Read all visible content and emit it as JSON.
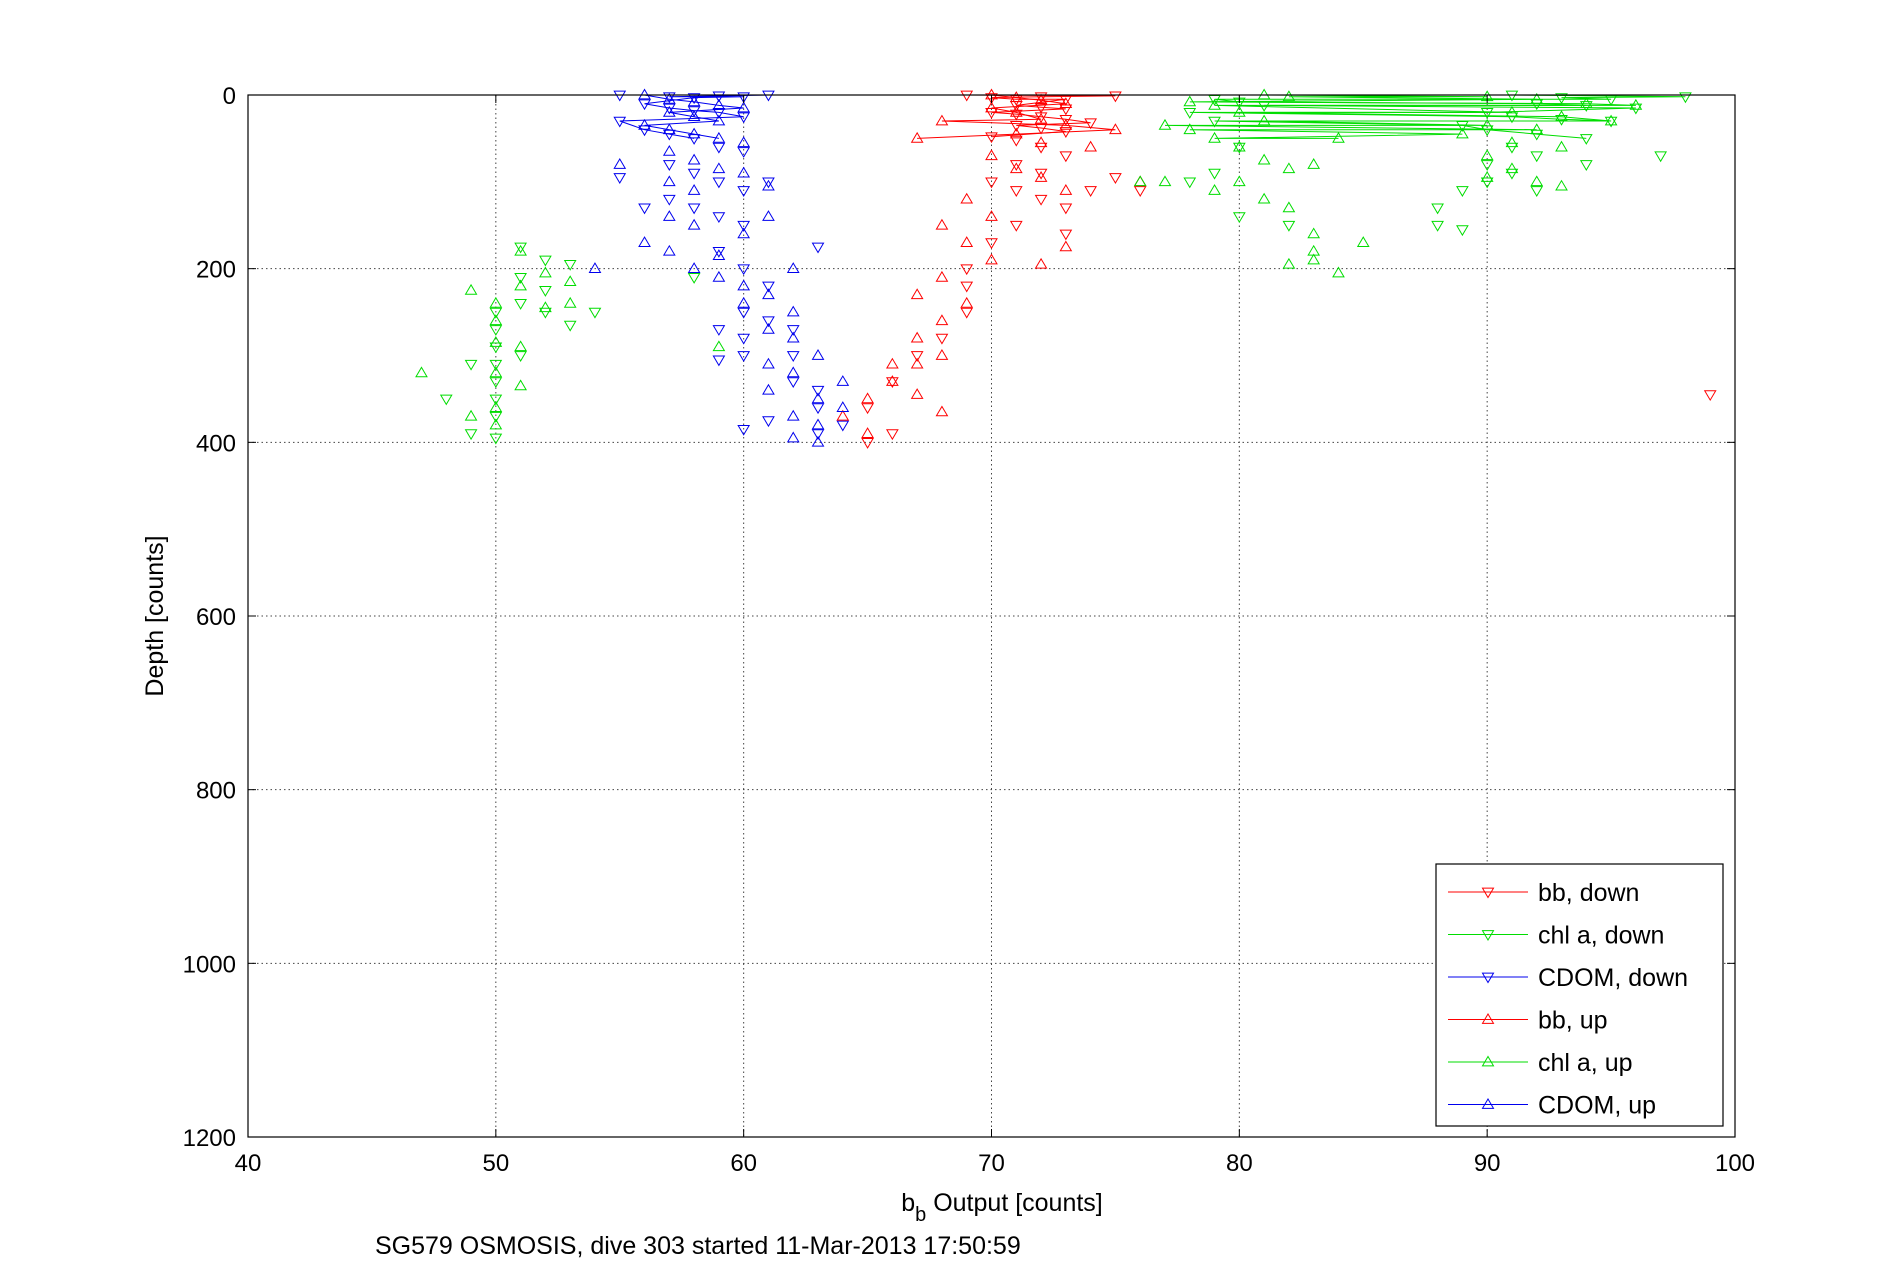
{
  "chart_data": {
    "type": "scatter",
    "title": "",
    "xlabel": {
      "base": "b",
      "sub": "b",
      "rest": " Output [counts]"
    },
    "ylabel": "Depth [counts]",
    "xlim": [
      40,
      100
    ],
    "ylim": [
      0,
      1200
    ],
    "y_reversed": true,
    "grid": true,
    "legend_position": "bottom-right",
    "x_ticks": [
      "40",
      "50",
      "60",
      "70",
      "80",
      "90",
      "100"
    ],
    "y_ticks": [
      "0",
      "200",
      "400",
      "600",
      "800",
      "1000",
      "1200"
    ],
    "footer": "SG579 OSMOSIS, dive 303 started 11-Mar-2013 17:50:59",
    "series": [
      {
        "name": "bb, down",
        "color": "#ff0000",
        "marker": "triangle-down",
        "points": [
          [
            69,
            0
          ],
          [
            70,
            3
          ],
          [
            71,
            5
          ],
          [
            72,
            2
          ],
          [
            73,
            5
          ],
          [
            75,
            1
          ],
          [
            71,
            12
          ],
          [
            72,
            14
          ],
          [
            73,
            16
          ],
          [
            70,
            20
          ],
          [
            71,
            22
          ],
          [
            72,
            25
          ],
          [
            73,
            28
          ],
          [
            74,
            32
          ],
          [
            71,
            35
          ],
          [
            72,
            38
          ],
          [
            73,
            42
          ],
          [
            70,
            48
          ],
          [
            71,
            52
          ],
          [
            72,
            60
          ],
          [
            73,
            70
          ],
          [
            71,
            80
          ],
          [
            72,
            90
          ],
          [
            70,
            100
          ],
          [
            71,
            110
          ],
          [
            72,
            120
          ],
          [
            73,
            130
          ],
          [
            71,
            150
          ],
          [
            70,
            170
          ],
          [
            69,
            200
          ],
          [
            69,
            220
          ],
          [
            69,
            250
          ],
          [
            68,
            280
          ],
          [
            67,
            300
          ],
          [
            66,
            330
          ],
          [
            65,
            360
          ],
          [
            66,
            390
          ],
          [
            65,
            400
          ],
          [
            73,
            160
          ],
          [
            74,
            110
          ],
          [
            75,
            95
          ],
          [
            76,
            110
          ],
          [
            99,
            345
          ]
        ]
      },
      {
        "name": "chl a, down",
        "color": "#00dd00",
        "marker": "triangle-down",
        "points": [
          [
            91,
            0
          ],
          [
            93,
            3
          ],
          [
            95,
            5
          ],
          [
            98,
            2
          ],
          [
            92,
            10
          ],
          [
            94,
            12
          ],
          [
            96,
            15
          ],
          [
            90,
            20
          ],
          [
            91,
            25
          ],
          [
            93,
            28
          ],
          [
            95,
            30
          ],
          [
            89,
            35
          ],
          [
            90,
            40
          ],
          [
            92,
            45
          ],
          [
            94,
            50
          ],
          [
            91,
            60
          ],
          [
            92,
            70
          ],
          [
            90,
            80
          ],
          [
            91,
            90
          ],
          [
            90,
            100
          ],
          [
            89,
            110
          ],
          [
            88,
            130
          ],
          [
            88,
            150
          ],
          [
            89,
            155
          ],
          [
            97,
            70
          ],
          [
            94,
            80
          ],
          [
            92,
            110
          ],
          [
            79,
            5
          ],
          [
            80,
            8
          ],
          [
            81,
            12
          ],
          [
            78,
            20
          ],
          [
            79,
            30
          ],
          [
            80,
            60
          ],
          [
            79,
            90
          ],
          [
            78,
            100
          ],
          [
            80,
            140
          ],
          [
            82,
            150
          ],
          [
            51,
            175
          ],
          [
            52,
            190
          ],
          [
            53,
            195
          ],
          [
            51,
            210
          ],
          [
            52,
            225
          ],
          [
            51,
            240
          ],
          [
            50,
            250
          ],
          [
            50,
            270
          ],
          [
            50,
            290
          ],
          [
            50,
            310
          ],
          [
            51,
            300
          ],
          [
            50,
            330
          ],
          [
            50,
            350
          ],
          [
            50,
            370
          ],
          [
            50,
            395
          ],
          [
            49,
            390
          ],
          [
            49,
            310
          ],
          [
            52,
            250
          ],
          [
            53,
            265
          ],
          [
            54,
            250
          ],
          [
            48,
            350
          ],
          [
            58,
            210
          ]
        ]
      },
      {
        "name": "CDOM, down",
        "color": "#0000ee",
        "marker": "triangle-down",
        "points": [
          [
            55,
            0
          ],
          [
            57,
            2
          ],
          [
            58,
            3
          ],
          [
            59,
            1
          ],
          [
            60,
            2
          ],
          [
            61,
            0
          ],
          [
            56,
            10
          ],
          [
            57,
            15
          ],
          [
            58,
            18
          ],
          [
            59,
            20
          ],
          [
            60,
            25
          ],
          [
            55,
            30
          ],
          [
            56,
            40
          ],
          [
            57,
            45
          ],
          [
            58,
            50
          ],
          [
            59,
            60
          ],
          [
            60,
            65
          ],
          [
            57,
            80
          ],
          [
            58,
            90
          ],
          [
            59,
            100
          ],
          [
            60,
            110
          ],
          [
            57,
            120
          ],
          [
            58,
            130
          ],
          [
            59,
            140
          ],
          [
            60,
            150
          ],
          [
            61,
            100
          ],
          [
            59,
            180
          ],
          [
            60,
            200
          ],
          [
            61,
            220
          ],
          [
            60,
            250
          ],
          [
            59,
            270
          ],
          [
            60,
            280
          ],
          [
            62,
            270
          ],
          [
            61,
            260
          ],
          [
            60,
            300
          ],
          [
            59,
            305
          ],
          [
            62,
            330
          ],
          [
            63,
            340
          ],
          [
            63,
            360
          ],
          [
            64,
            380
          ],
          [
            63,
            390
          ],
          [
            61,
            375
          ],
          [
            60,
            385
          ],
          [
            62,
            300
          ],
          [
            63,
            175
          ],
          [
            56,
            130
          ],
          [
            55,
            95
          ]
        ]
      },
      {
        "name": "bb, up",
        "color": "#ff0000",
        "marker": "triangle-up",
        "points": [
          [
            70,
            0
          ],
          [
            71,
            3
          ],
          [
            72,
            6
          ],
          [
            73,
            10
          ],
          [
            70,
            15
          ],
          [
            71,
            20
          ],
          [
            72,
            28
          ],
          [
            73,
            35
          ],
          [
            71,
            45
          ],
          [
            72,
            55
          ],
          [
            70,
            70
          ],
          [
            71,
            85
          ],
          [
            72,
            95
          ],
          [
            73,
            110
          ],
          [
            69,
            120
          ],
          [
            70,
            140
          ],
          [
            68,
            150
          ],
          [
            69,
            170
          ],
          [
            70,
            190
          ],
          [
            68,
            210
          ],
          [
            67,
            230
          ],
          [
            69,
            240
          ],
          [
            68,
            260
          ],
          [
            67,
            280
          ],
          [
            68,
            300
          ],
          [
            67,
            310
          ],
          [
            66,
            330
          ],
          [
            65,
            350
          ],
          [
            64,
            370
          ],
          [
            65,
            390
          ],
          [
            72,
            195
          ],
          [
            73,
            175
          ],
          [
            66,
            310
          ],
          [
            67,
            345
          ],
          [
            68,
            365
          ],
          [
            74,
            60
          ],
          [
            75,
            40
          ],
          [
            76,
            100
          ],
          [
            68,
            30
          ],
          [
            67,
            50
          ]
        ]
      },
      {
        "name": "chl a, up",
        "color": "#00dd00",
        "marker": "triangle-up",
        "points": [
          [
            90,
            2
          ],
          [
            92,
            5
          ],
          [
            94,
            10
          ],
          [
            96,
            12
          ],
          [
            91,
            20
          ],
          [
            93,
            25
          ],
          [
            95,
            30
          ],
          [
            90,
            35
          ],
          [
            92,
            40
          ],
          [
            89,
            45
          ],
          [
            91,
            55
          ],
          [
            93,
            60
          ],
          [
            90,
            70
          ],
          [
            91,
            85
          ],
          [
            90,
            95
          ],
          [
            92,
            100
          ],
          [
            93,
            105
          ],
          [
            81,
            0
          ],
          [
            82,
            2
          ],
          [
            78,
            8
          ],
          [
            79,
            12
          ],
          [
            80,
            20
          ],
          [
            81,
            30
          ],
          [
            77,
            35
          ],
          [
            78,
            40
          ],
          [
            79,
            50
          ],
          [
            80,
            60
          ],
          [
            81,
            75
          ],
          [
            82,
            85
          ],
          [
            83,
            80
          ],
          [
            80,
            100
          ],
          [
            79,
            110
          ],
          [
            81,
            120
          ],
          [
            82,
            130
          ],
          [
            83,
            160
          ],
          [
            83,
            180
          ],
          [
            83,
            190
          ],
          [
            84,
            205
          ],
          [
            85,
            170
          ],
          [
            82,
            195
          ],
          [
            51,
            180
          ],
          [
            52,
            205
          ],
          [
            53,
            215
          ],
          [
            51,
            220
          ],
          [
            50,
            240
          ],
          [
            50,
            260
          ],
          [
            50,
            285
          ],
          [
            51,
            290
          ],
          [
            50,
            320
          ],
          [
            50,
            360
          ],
          [
            50,
            380
          ],
          [
            49,
            225
          ],
          [
            49,
            370
          ],
          [
            47,
            320
          ],
          [
            53,
            240
          ],
          [
            52,
            245
          ],
          [
            51,
            335
          ],
          [
            59,
            290
          ],
          [
            76,
            100
          ],
          [
            77,
            100
          ],
          [
            84,
            50
          ]
        ]
      },
      {
        "name": "CDOM, up",
        "color": "#0000ee",
        "marker": "triangle-up",
        "points": [
          [
            56,
            0
          ],
          [
            57,
            5
          ],
          [
            58,
            8
          ],
          [
            59,
            12
          ],
          [
            60,
            15
          ],
          [
            57,
            20
          ],
          [
            58,
            25
          ],
          [
            59,
            30
          ],
          [
            56,
            35
          ],
          [
            57,
            40
          ],
          [
            58,
            45
          ],
          [
            59,
            50
          ],
          [
            60,
            55
          ],
          [
            57,
            65
          ],
          [
            58,
            75
          ],
          [
            59,
            85
          ],
          [
            60,
            90
          ],
          [
            57,
            100
          ],
          [
            58,
            110
          ],
          [
            57,
            140
          ],
          [
            58,
            150
          ],
          [
            56,
            170
          ],
          [
            57,
            180
          ],
          [
            58,
            200
          ],
          [
            59,
            210
          ],
          [
            60,
            220
          ],
          [
            61,
            230
          ],
          [
            60,
            240
          ],
          [
            62,
            250
          ],
          [
            61,
            270
          ],
          [
            62,
            280
          ],
          [
            63,
            300
          ],
          [
            61,
            310
          ],
          [
            62,
            320
          ],
          [
            63,
            350
          ],
          [
            64,
            360
          ],
          [
            62,
            370
          ],
          [
            63,
            380
          ],
          [
            62,
            395
          ],
          [
            63,
            400
          ],
          [
            64,
            330
          ],
          [
            61,
            340
          ],
          [
            59,
            185
          ],
          [
            60,
            160
          ],
          [
            61,
            140
          ],
          [
            62,
            200
          ],
          [
            54,
            200
          ],
          [
            55,
            80
          ],
          [
            61,
            105
          ]
        ]
      }
    ]
  }
}
